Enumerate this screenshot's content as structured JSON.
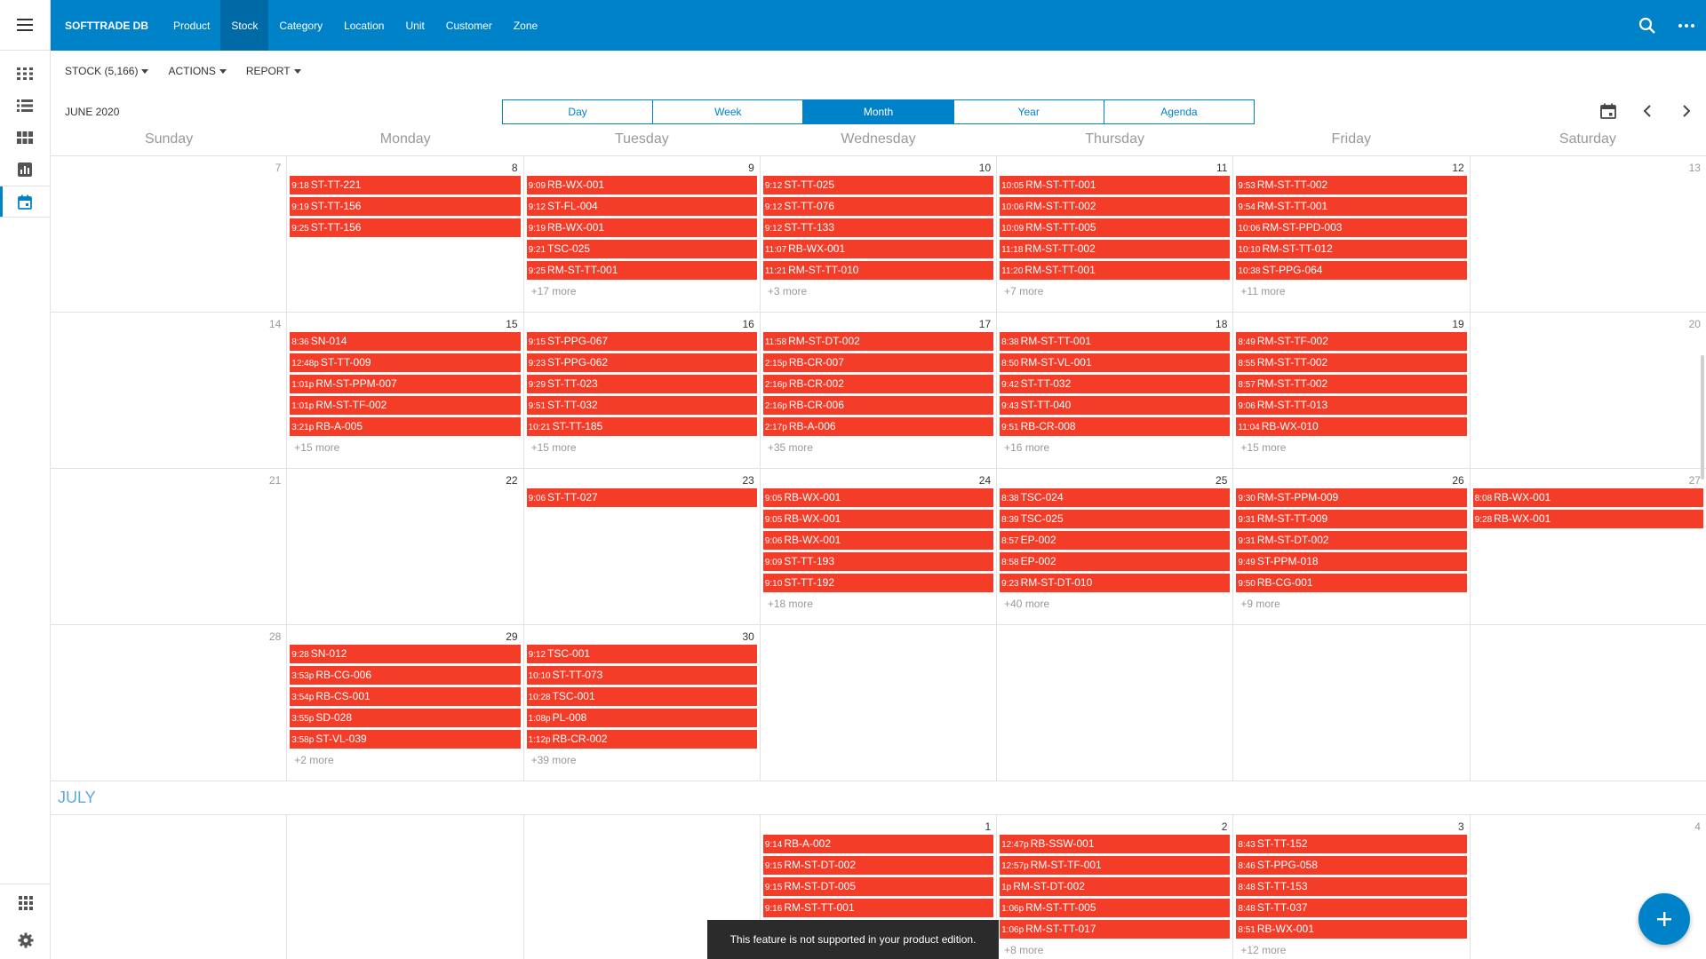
{
  "colors": {
    "brand": "#0082c8",
    "event": "#f33d29",
    "muted": "#999999",
    "july": "#5ea9dc"
  },
  "rail": {
    "icons": [
      "menu-icon",
      "grid-large-icon",
      "list-icon",
      "tiles-icon",
      "chart-icon",
      "calendar-icon",
      "apps-icon",
      "settings-icon"
    ]
  },
  "topbar": {
    "brand": "SOFTTRADE DB",
    "nav": [
      "Product",
      "Stock",
      "Category",
      "Location",
      "Unit",
      "Customer",
      "Zone"
    ],
    "active": "Stock"
  },
  "toolbar": {
    "stock": "STOCK (5,166)",
    "actions": "ACTIONS",
    "report": "REPORT"
  },
  "calendar": {
    "title": "JUNE 2020",
    "views": [
      "Day",
      "Week",
      "Month",
      "Year",
      "Agenda"
    ],
    "active_view": "Month",
    "weekdays": [
      "Sunday",
      "Monday",
      "Tuesday",
      "Wednesday",
      "Thursday",
      "Friday",
      "Saturday"
    ],
    "next_month_label": "JULY",
    "weeks": [
      {
        "days": [
          {
            "num": "7",
            "weekend": true,
            "events": [],
            "more": ""
          },
          {
            "num": "8",
            "events": [
              [
                "9:18",
                "ST-TT-221"
              ],
              [
                "9:19",
                "ST-TT-156"
              ],
              [
                "9:25",
                "ST-TT-156"
              ]
            ],
            "more": ""
          },
          {
            "num": "9",
            "events": [
              [
                "9:09",
                "RB-WX-001"
              ],
              [
                "9:12",
                "ST-FL-004"
              ],
              [
                "9:19",
                "RB-WX-001"
              ],
              [
                "9:21",
                "TSC-025"
              ],
              [
                "9:25",
                "RM-ST-TT-001"
              ]
            ],
            "more": "+17 more"
          },
          {
            "num": "10",
            "events": [
              [
                "9:12",
                "ST-TT-025"
              ],
              [
                "9:12",
                "ST-TT-076"
              ],
              [
                "9:12",
                "ST-TT-133"
              ],
              [
                "11:07",
                "RB-WX-001"
              ],
              [
                "11:21",
                "RM-ST-TT-010"
              ]
            ],
            "more": "+3 more"
          },
          {
            "num": "11",
            "events": [
              [
                "10:05",
                "RM-ST-TT-001"
              ],
              [
                "10:06",
                "RM-ST-TT-002"
              ],
              [
                "10:09",
                "RM-ST-TT-005"
              ],
              [
                "11:18",
                "RM-ST-TT-002"
              ],
              [
                "11:20",
                "RM-ST-TT-001"
              ]
            ],
            "more": "+7 more"
          },
          {
            "num": "12",
            "events": [
              [
                "9:53",
                "RM-ST-TT-002"
              ],
              [
                "9:54",
                "RM-ST-TT-001"
              ],
              [
                "10:06",
                "RM-ST-PPD-003"
              ],
              [
                "10:10",
                "RM-ST-TT-012"
              ],
              [
                "10:38",
                "ST-PPG-064"
              ]
            ],
            "more": "+11 more"
          },
          {
            "num": "13",
            "weekend": true,
            "events": [],
            "more": ""
          }
        ]
      },
      {
        "days": [
          {
            "num": "14",
            "weekend": true,
            "events": [],
            "more": ""
          },
          {
            "num": "15",
            "events": [
              [
                "8:36",
                "SN-014"
              ],
              [
                "12:48p",
                "ST-TT-009"
              ],
              [
                "1:01p",
                "RM-ST-PPM-007"
              ],
              [
                "1:01p",
                "RM-ST-TF-002"
              ],
              [
                "3:21p",
                "RB-A-005"
              ]
            ],
            "more": "+15 more"
          },
          {
            "num": "16",
            "events": [
              [
                "9:15",
                "ST-PPG-067"
              ],
              [
                "9:23",
                "ST-PPG-062"
              ],
              [
                "9:29",
                "ST-TT-023"
              ],
              [
                "9:51",
                "ST-TT-032"
              ],
              [
                "10:21",
                "ST-TT-185"
              ]
            ],
            "more": "+15 more"
          },
          {
            "num": "17",
            "events": [
              [
                "11:58",
                "RM-ST-DT-002"
              ],
              [
                "2:15p",
                "RB-CR-007"
              ],
              [
                "2:16p",
                "RB-CR-002"
              ],
              [
                "2:16p",
                "RB-CR-006"
              ],
              [
                "2:17p",
                "RB-A-006"
              ]
            ],
            "more": "+35 more"
          },
          {
            "num": "18",
            "events": [
              [
                "8:38",
                "RM-ST-TT-001"
              ],
              [
                "8:50",
                "RM-ST-VL-001"
              ],
              [
                "9:42",
                "ST-TT-032"
              ],
              [
                "9:43",
                "ST-TT-040"
              ],
              [
                "9:51",
                "RB-CR-008"
              ]
            ],
            "more": "+16 more"
          },
          {
            "num": "19",
            "events": [
              [
                "8:49",
                "RM-ST-TF-002"
              ],
              [
                "8:55",
                "RM-ST-TT-002"
              ],
              [
                "8:57",
                "RM-ST-TT-002"
              ],
              [
                "9:06",
                "RM-ST-TT-013"
              ],
              [
                "11:04",
                "RB-WX-010"
              ]
            ],
            "more": "+15 more"
          },
          {
            "num": "20",
            "weekend": true,
            "events": [],
            "more": ""
          }
        ]
      },
      {
        "days": [
          {
            "num": "21",
            "weekend": true,
            "events": [],
            "more": ""
          },
          {
            "num": "22",
            "events": [],
            "more": ""
          },
          {
            "num": "23",
            "events": [
              [
                "9:06",
                "ST-TT-027"
              ]
            ],
            "more": ""
          },
          {
            "num": "24",
            "events": [
              [
                "9:05",
                "RB-WX-001"
              ],
              [
                "9:05",
                "RB-WX-001"
              ],
              [
                "9:06",
                "RB-WX-001"
              ],
              [
                "9:09",
                "ST-TT-193"
              ],
              [
                "9:10",
                "ST-TT-192"
              ]
            ],
            "more": "+18 more"
          },
          {
            "num": "25",
            "events": [
              [
                "8:38",
                "TSC-024"
              ],
              [
                "8:39",
                "TSC-025"
              ],
              [
                "8:57",
                "EP-002"
              ],
              [
                "8:58",
                "EP-002"
              ],
              [
                "9:23",
                "RM-ST-DT-010"
              ]
            ],
            "more": "+40 more"
          },
          {
            "num": "26",
            "events": [
              [
                "9:30",
                "RM-ST-PPM-009"
              ],
              [
                "9:31",
                "RM-ST-TT-009"
              ],
              [
                "9:31",
                "RM-ST-DT-002"
              ],
              [
                "9:49",
                "ST-PPM-018"
              ],
              [
                "9:50",
                "RB-CG-001"
              ]
            ],
            "more": "+9 more"
          },
          {
            "num": "27",
            "weekend": true,
            "events": [
              [
                "8:08",
                "RB-WX-001"
              ],
              [
                "9:28",
                "RB-WX-001"
              ]
            ],
            "more": ""
          }
        ]
      },
      {
        "days": [
          {
            "num": "28",
            "weekend": true,
            "events": [],
            "more": ""
          },
          {
            "num": "29",
            "events": [
              [
                "9:28",
                "SN-012"
              ],
              [
                "3:53p",
                "RB-CG-006"
              ],
              [
                "3:54p",
                "RB-CS-001"
              ],
              [
                "3:55p",
                "SD-028"
              ],
              [
                "3:58p",
                "ST-VL-039"
              ]
            ],
            "more": "+2 more"
          },
          {
            "num": "30",
            "events": [
              [
                "9:12",
                "TSC-001"
              ],
              [
                "10:10",
                "ST-TT-073"
              ],
              [
                "10:28",
                "TSC-001"
              ],
              [
                "1:08p",
                "PL-008"
              ],
              [
                "1:12p",
                "RB-CR-002"
              ]
            ],
            "more": "+39 more"
          },
          {
            "num": "",
            "events": [],
            "more": ""
          },
          {
            "num": "",
            "events": [],
            "more": ""
          },
          {
            "num": "",
            "events": [],
            "more": ""
          },
          {
            "num": "",
            "events": [],
            "more": ""
          }
        ]
      },
      {
        "july": true,
        "days": [
          {
            "num": "",
            "events": [],
            "more": ""
          },
          {
            "num": "",
            "events": [],
            "more": ""
          },
          {
            "num": "",
            "events": [],
            "more": ""
          },
          {
            "num": "1",
            "events": [
              [
                "9:14",
                "RB-A-002"
              ],
              [
                "9:15",
                "RM-ST-DT-002"
              ],
              [
                "9:15",
                "RM-ST-DT-005"
              ],
              [
                "9:16",
                "RM-ST-TT-001"
              ]
            ],
            "more": ""
          },
          {
            "num": "2",
            "events": [
              [
                "12:47p",
                "RB-SSW-001"
              ],
              [
                "12:57p",
                "RM-ST-TF-001"
              ],
              [
                "1p",
                "RM-ST-DT-002"
              ],
              [
                "1:06p",
                "RM-ST-TT-005"
              ],
              [
                "1:06p",
                "RM-ST-TT-017"
              ]
            ],
            "more": "+8 more"
          },
          {
            "num": "3",
            "events": [
              [
                "8:43",
                "ST-TT-152"
              ],
              [
                "8:46",
                "ST-PPG-058"
              ],
              [
                "8:48",
                "ST-TT-153"
              ],
              [
                "8:48",
                "ST-TT-037"
              ],
              [
                "8:51",
                "RB-WX-001"
              ]
            ],
            "more": "+12 more"
          },
          {
            "num": "4",
            "weekend": true,
            "events": [],
            "more": ""
          }
        ]
      }
    ]
  },
  "toast": "This feature is not supported in your product edition."
}
